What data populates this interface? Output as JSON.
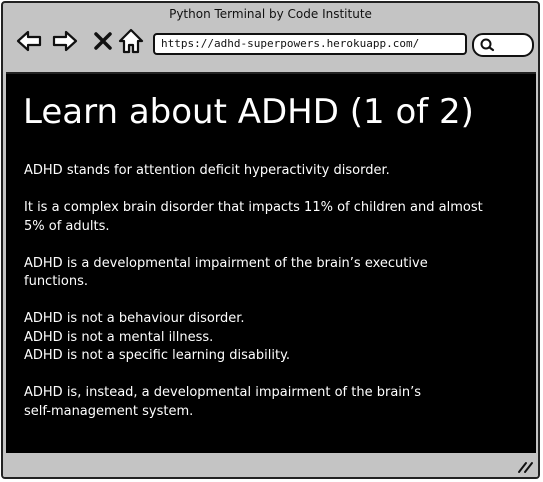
{
  "window": {
    "title": "Python Terminal by Code Institute"
  },
  "toolbar": {
    "back_icon": "arrow-left-icon",
    "forward_icon": "arrow-right-icon",
    "stop_icon": "close-icon",
    "home_icon": "home-icon",
    "url": "https://adhd-superpowers.herokuapp.com/",
    "search_icon": "search-icon"
  },
  "content": {
    "title": "Learn about ADHD (1 of 2)",
    "paragraphs": [
      {
        "lines": [
          "ADHD stands for attention deficit hyperactivity disorder."
        ]
      },
      {
        "lines": [
          "It is a complex brain disorder that impacts 11% of children and almost",
          "5% of adults."
        ]
      },
      {
        "lines": [
          "ADHD is a developmental impairment of the brain’s executive",
          "functions."
        ]
      },
      {
        "lines": [
          "ADHD is not a behaviour disorder.",
          "ADHD is not a mental illness.",
          "ADHD is not a specific learning disability."
        ]
      },
      {
        "lines": [
          "ADHD is, instead, a developmental impairment of the brain’s",
          "self-management system."
        ]
      }
    ]
  },
  "colors": {
    "chrome": "#c4c4c4",
    "terminal_bg": "#000000",
    "terminal_text": "#ffffff"
  }
}
